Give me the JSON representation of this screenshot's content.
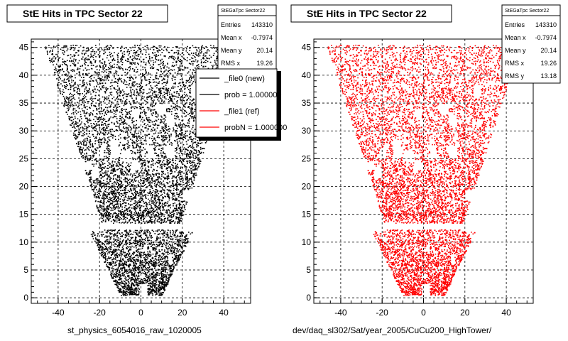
{
  "chart_data": [
    {
      "type": "scatter",
      "title": "StE Hits in TPC Sector 22",
      "xlabel": "st_physics_6054016_raw_1020005",
      "ylabel": "",
      "xlim": [
        -53,
        53
      ],
      "ylim": [
        -1,
        46.5
      ],
      "x_ticks": [
        "-40",
        "-20",
        "0",
        "20",
        "40"
      ],
      "y_ticks": [
        "0",
        "5",
        "10",
        "15",
        "20",
        "25",
        "30",
        "35",
        "40",
        "45"
      ],
      "grid": true,
      "marker_color": "#000000",
      "stats": {
        "title": "StEGaTpc Sector22",
        "rows": [
          {
            "label": "Entries",
            "value": "143310"
          },
          {
            "label": "Mean x",
            "value": "-0.7974"
          },
          {
            "label": "Mean y",
            "value": "20.14"
          },
          {
            "label": "RMS x",
            "value": "19.26"
          }
        ]
      },
      "legend": {
        "placement": "top-right",
        "entries": [
          {
            "label": "_file0 (new)",
            "color": "#000000"
          },
          {
            "label": "prob = 1.000000",
            "color": "#000000"
          },
          {
            "label": "_file1 (ref)",
            "color": "#ff0000"
          },
          {
            "label": "probN = 1.000000",
            "color": "#ff0000"
          }
        ]
      }
    },
    {
      "type": "scatter",
      "title": "StE Hits in TPC Sector 22",
      "xlabel": "dev/daq_sl302/Sat/year_2005/CuCu200_HighTower/",
      "ylabel": "",
      "xlim": [
        -53,
        53
      ],
      "ylim": [
        -1,
        46.5
      ],
      "x_ticks": [
        "-40",
        "-20",
        "0",
        "20",
        "40"
      ],
      "y_ticks": [
        "0",
        "5",
        "10",
        "15",
        "20",
        "25",
        "30",
        "35",
        "40",
        "45"
      ],
      "grid": true,
      "marker_color": "#ff0000",
      "stats": {
        "title": "StEGaTpc Sector22",
        "rows": [
          {
            "label": "Entries",
            "value": "143310"
          },
          {
            "label": "Mean x",
            "value": "-0.7974"
          },
          {
            "label": "Mean y",
            "value": "20.14"
          },
          {
            "label": "RMS x",
            "value": "19.26"
          },
          {
            "label": "RMS y",
            "value": "13.18"
          }
        ]
      }
    }
  ]
}
